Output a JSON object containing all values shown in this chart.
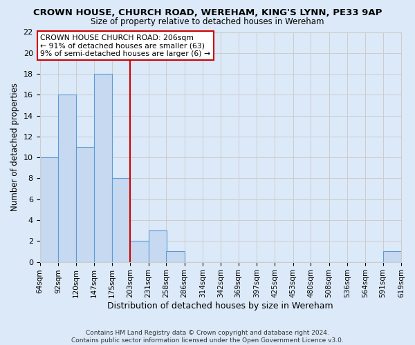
{
  "title": "CROWN HOUSE, CHURCH ROAD, WEREHAM, KING'S LYNN, PE33 9AP",
  "subtitle": "Size of property relative to detached houses in Wereham",
  "xlabel": "Distribution of detached houses by size in Wereham",
  "ylabel": "Number of detached properties",
  "footer_line1": "Contains HM Land Registry data © Crown copyright and database right 2024.",
  "footer_line2": "Contains public sector information licensed under the Open Government Licence v3.0.",
  "bin_edges": [
    64,
    92,
    120,
    147,
    175,
    203,
    231,
    258,
    286,
    314,
    342,
    369,
    397,
    425,
    453,
    480,
    508,
    536,
    564,
    591,
    619
  ],
  "bin_labels": [
    "64sqm",
    "92sqm",
    "120sqm",
    "147sqm",
    "175sqm",
    "203sqm",
    "231sqm",
    "258sqm",
    "286sqm",
    "314sqm",
    "342sqm",
    "369sqm",
    "397sqm",
    "425sqm",
    "453sqm",
    "480sqm",
    "508sqm",
    "536sqm",
    "564sqm",
    "591sqm",
    "619sqm"
  ],
  "counts": [
    10,
    16,
    11,
    18,
    8,
    2,
    3,
    1,
    0,
    0,
    0,
    0,
    0,
    0,
    0,
    0,
    0,
    0,
    0,
    1
  ],
  "bar_color": "#c6d9f0",
  "bar_edge_color": "#5b9bd5",
  "grid_color": "#cccccc",
  "bg_color": "#dce9f8",
  "property_line_x": 203,
  "property_line_color": "#cc0000",
  "annotation_title": "CROWN HOUSE CHURCH ROAD: 206sqm",
  "annotation_line1": "← 91% of detached houses are smaller (63)",
  "annotation_line2": "9% of semi-detached houses are larger (6) →",
  "annotation_box_color": "#ffffff",
  "annotation_box_edge": "#cc0000",
  "ylim": [
    0,
    22
  ],
  "yticks": [
    0,
    2,
    4,
    6,
    8,
    10,
    12,
    14,
    16,
    18,
    20,
    22
  ]
}
